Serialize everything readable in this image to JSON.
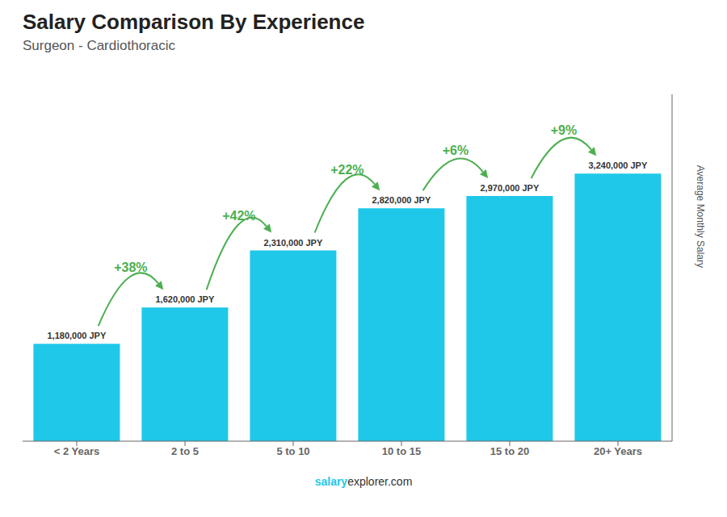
{
  "chart_data": {
    "type": "bar",
    "title": "Salary Comparison By Experience",
    "subtitle": "Surgeon - Cardiothoracic",
    "categories": [
      "< 2 Years",
      "2 to 5",
      "5 to 10",
      "10 to 15",
      "15 to 20",
      "20+ Years"
    ],
    "values": [
      1180000,
      1620000,
      2310000,
      2820000,
      2970000,
      3240000
    ],
    "value_labels": [
      "1,180,000 JPY",
      "1,620,000 JPY",
      "2,310,000 JPY",
      "2,820,000 JPY",
      "2,970,000 JPY",
      "3,240,000 JPY"
    ],
    "data_labels": true,
    "color": "#1fc8e8",
    "ylim": [
      0,
      4200000
    ],
    "ylabel": "Average Monthly Salary",
    "tick_labels": "x",
    "grid": false,
    "annotations": [
      "+38%",
      "+42%",
      "+22%",
      "+6%",
      "+9%"
    ],
    "footer": [
      "salary",
      "explorer.com"
    ]
  }
}
